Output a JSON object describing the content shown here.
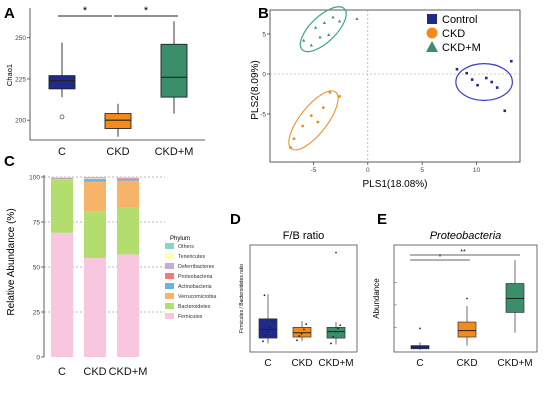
{
  "panels": {
    "A": {
      "letter": "A"
    },
    "B": {
      "letter": "B"
    },
    "C": {
      "letter": "C"
    },
    "D": {
      "letter": "D"
    },
    "E": {
      "letter": "E"
    }
  },
  "colors": {
    "control": "#1f2a8a",
    "ckd": "#f28a1c",
    "ckdm": "#3a8f6a",
    "ellipse_control": "#3b3bcc",
    "ellipse_ckd": "#f09a3a",
    "ellipse_ckdm": "#3aa888"
  },
  "chart_data": [
    {
      "id": "A",
      "type": "box",
      "ylabel": "Chao1",
      "ylim": [
        188,
        268
      ],
      "yticks": [
        200,
        225,
        250
      ],
      "categories": [
        "C",
        "CKD",
        "CKD+M"
      ],
      "boxes": [
        {
          "name": "C",
          "whisker_low": 214,
          "q1": 219,
          "median": 224,
          "q3": 227,
          "whisker_high": 247,
          "outliers": [
            202
          ],
          "color": "#1f2a8a"
        },
        {
          "name": "CKD",
          "whisker_low": 190,
          "q1": 195,
          "median": 200,
          "q3": 204,
          "whisker_high": 210,
          "outliers": [],
          "color": "#f28a1c"
        },
        {
          "name": "CKD+M",
          "whisker_low": 204,
          "q1": 214,
          "median": 226,
          "q3": 246,
          "whisker_high": 260,
          "outliers": [],
          "color": "#3a8f6a"
        }
      ],
      "significance": [
        {
          "from": "C",
          "to": "CKD",
          "label": "*"
        },
        {
          "from": "CKD",
          "to": "CKD+M",
          "label": "*"
        }
      ]
    },
    {
      "id": "B",
      "type": "scatter",
      "xlabel": "PLS1(18.08%)",
      "ylabel": "PLS2(8.09%)",
      "xlim": [
        -9,
        14
      ],
      "ylim": [
        -11,
        8
      ],
      "xticks": [
        -5,
        0,
        5,
        10
      ],
      "yticks": [
        -5,
        0,
        5
      ],
      "legend": [
        "Control",
        "CKD",
        "CKD+M"
      ],
      "legend_position": "top-right",
      "series": [
        {
          "name": "Control",
          "marker": "square",
          "color": "#1f2a8a",
          "points": [
            [
              8.2,
              0.6
            ],
            [
              9.1,
              0.1
            ],
            [
              9.6,
              -0.7
            ],
            [
              10.1,
              -1.4
            ],
            [
              10.9,
              -0.5
            ],
            [
              11.4,
              -1.0
            ],
            [
              11.9,
              -1.7
            ],
            [
              12.6,
              -4.6
            ],
            [
              13.2,
              1.6
            ]
          ],
          "ellipse": {
            "cx": 10.7,
            "cy": -1.0,
            "rx": 2.6,
            "ry": 2.3
          }
        },
        {
          "name": "CKD",
          "marker": "circle",
          "color": "#f28a1c",
          "points": [
            [
              -7.1,
              -9.2
            ],
            [
              -6.8,
              -8.1
            ],
            [
              -6.0,
              -6.5
            ],
            [
              -5.2,
              -5.2
            ],
            [
              -4.6,
              -6.0
            ],
            [
              -4.1,
              -4.2
            ],
            [
              -3.5,
              -2.3
            ],
            [
              -2.6,
              -2.8
            ]
          ],
          "ellipse": {
            "cx": -5.0,
            "cy": -5.8,
            "rx": 3.3,
            "ry": 1.7,
            "rotate": -52
          }
        },
        {
          "name": "CKD+M",
          "marker": "triangle",
          "color": "#3a8f6a",
          "points": [
            [
              -5.9,
              4.2
            ],
            [
              -5.2,
              3.6
            ],
            [
              -4.8,
              5.8
            ],
            [
              -4.4,
              4.6
            ],
            [
              -4.0,
              6.4
            ],
            [
              -3.6,
              4.9
            ],
            [
              -3.2,
              7.1
            ],
            [
              -2.6,
              6.6
            ],
            [
              -1.0,
              6.9
            ]
          ],
          "ellipse": {
            "cx": -4.1,
            "cy": 5.6,
            "rx": 2.7,
            "ry": 1.6,
            "rotate": -44
          }
        }
      ]
    },
    {
      "id": "C",
      "type": "stacked_bar",
      "ylabel": "Relative Abundance (%)",
      "ylim": [
        0,
        100
      ],
      "yticks": [
        0,
        25,
        50,
        75,
        100
      ],
      "categories": [
        "C",
        "CKD",
        "CKD+M"
      ],
      "legend_title": "Phylum",
      "legend_position": "right",
      "series": [
        {
          "name": "Firmicutes",
          "color": "#f9c6e0",
          "values": [
            69,
            55,
            57
          ]
        },
        {
          "name": "Bacteroidetes",
          "color": "#b3dd6c",
          "values": [
            29.5,
            26,
            26
          ]
        },
        {
          "name": "Verrucomicrobia",
          "color": "#f8b36b",
          "values": [
            0.3,
            16.5,
            15
          ]
        },
        {
          "name": "Actinobacteria",
          "color": "#6cb3e0",
          "values": [
            0.3,
            1.2,
            1.0
          ]
        },
        {
          "name": "Proteobacteria",
          "color": "#f47a7a",
          "values": [
            0.3,
            0.3,
            0.3
          ]
        },
        {
          "name": "Deferribacteres",
          "color": "#c8a8e0",
          "values": [
            0.2,
            0.2,
            0.2
          ]
        },
        {
          "name": "Tenericutes",
          "color": "#ffffb3",
          "values": [
            0.2,
            0.2,
            0.2
          ]
        },
        {
          "name": "Others",
          "color": "#8dd3c7",
          "values": [
            0.2,
            0.6,
            0.3
          ]
        }
      ]
    },
    {
      "id": "D",
      "type": "box",
      "title": "F/B ratio",
      "ylabel": "Firmicutes / Bacteroidetes ratio",
      "ylim": [
        0,
        10
      ],
      "categories": [
        "C",
        "CKD",
        "CKD+M"
      ],
      "boxes": [
        {
          "name": "C",
          "whisker_low": 0.8,
          "q1": 1.3,
          "median": 2.1,
          "q3": 3.1,
          "whisker_high": 5.4,
          "outliers": [],
          "color": "#1f2a8a",
          "jitter": [
            1.0,
            1.5,
            1.9,
            2.3,
            2.9,
            5.3
          ]
        },
        {
          "name": "CKD",
          "whisker_low": 1.0,
          "q1": 1.4,
          "median": 1.8,
          "q3": 2.3,
          "whisker_high": 2.9,
          "outliers": [],
          "color": "#f28a1c",
          "jitter": [
            1.1,
            1.5,
            1.7,
            2.1,
            2.6
          ]
        },
        {
          "name": "CKD+M",
          "whisker_low": 0.7,
          "q1": 1.3,
          "median": 1.9,
          "q3": 2.3,
          "whisker_high": 2.8,
          "outliers": [
            9.3
          ],
          "color": "#3a8f6a",
          "jitter": [
            0.8,
            1.4,
            1.9,
            2.2,
            2.5
          ]
        }
      ]
    },
    {
      "id": "E",
      "type": "box",
      "title": "Proteobacteria",
      "ylabel": "Abundance",
      "ylim": [
        0,
        10
      ],
      "categories": [
        "C",
        "CKD",
        "CKD+M"
      ],
      "boxes": [
        {
          "name": "C",
          "whisker_low": 0.2,
          "q1": 0.3,
          "median": 0.45,
          "q3": 0.6,
          "whisker_high": 0.9,
          "outliers": [
            2.2
          ],
          "color": "#1f2a8a"
        },
        {
          "name": "CKD",
          "whisker_low": 0.6,
          "q1": 1.4,
          "median": 2.0,
          "q3": 2.8,
          "whisker_high": 4.3,
          "outliers": [
            5.0
          ],
          "color": "#f28a1c"
        },
        {
          "name": "CKD+M",
          "whisker_low": 1.8,
          "q1": 3.7,
          "median": 5.0,
          "q3": 6.4,
          "whisker_high": 8.6,
          "outliers": [],
          "color": "#3a8f6a"
        }
      ],
      "significance": [
        {
          "from": "C",
          "to": "CKD",
          "label": "*"
        },
        {
          "from": "C",
          "to": "CKD+M",
          "label": "**"
        }
      ]
    }
  ]
}
